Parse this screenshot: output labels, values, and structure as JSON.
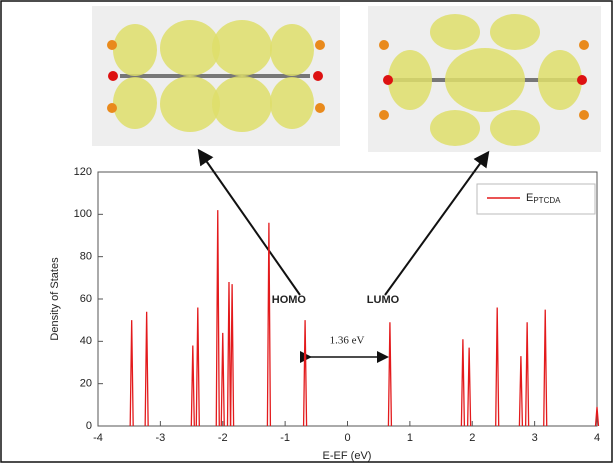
{
  "chart_data": {
    "type": "line",
    "xlabel": "E-EF (eV)",
    "ylabel": "Density of States",
    "xlim": [
      -4,
      4
    ],
    "xticks": [
      -4,
      -3,
      -2,
      -1,
      0,
      1,
      2,
      3,
      4
    ],
    "ylim": [
      0,
      120
    ],
    "yticks": [
      0,
      20,
      40,
      60,
      80,
      100,
      120
    ],
    "legend": "upper right",
    "series": [
      {
        "name": "EPTCDA",
        "color": "#e31a1c",
        "x": [
          -3.46,
          -3.22,
          -2.48,
          -2.4,
          -2.08,
          -2.0,
          -1.9,
          -1.85,
          -1.26,
          -0.68,
          0.68,
          1.85,
          1.95,
          2.4,
          2.78,
          2.88,
          3.17,
          4.0
        ],
        "values": [
          50,
          54,
          38,
          56,
          102,
          44,
          68,
          67,
          96,
          50,
          49,
          41,
          37,
          56,
          33,
          49,
          55,
          9
        ]
      }
    ],
    "annotations": [
      "HOMO",
      "LUMO",
      "1.36 eV"
    ]
  }
}
